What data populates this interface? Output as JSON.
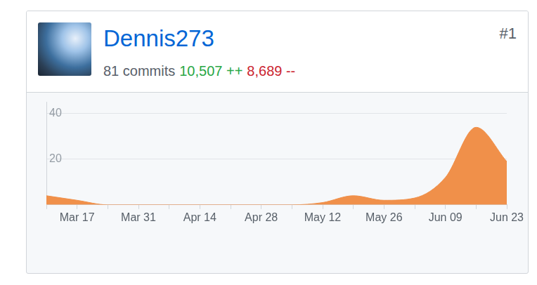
{
  "header": {
    "username": "Dennis273",
    "rank": "#1",
    "commits": "81 commits",
    "additions": "10,507 ++",
    "deletions": "8,689 --"
  },
  "chart_data": {
    "type": "area",
    "categories": [
      null,
      "Mar 17",
      null,
      "Mar 31",
      null,
      "Apr 14",
      null,
      "Apr 28",
      null,
      "May 12",
      null,
      "May 26",
      null,
      "Jun 09",
      null,
      "Jun 23"
    ],
    "values": [
      4,
      2,
      0,
      0,
      0,
      0,
      0,
      0,
      0,
      1,
      4,
      2,
      3,
      12,
      34,
      19
    ],
    "color": "#f0904a",
    "ylim": [
      0,
      45
    ],
    "yticks": [
      20,
      40
    ],
    "grid": true
  }
}
